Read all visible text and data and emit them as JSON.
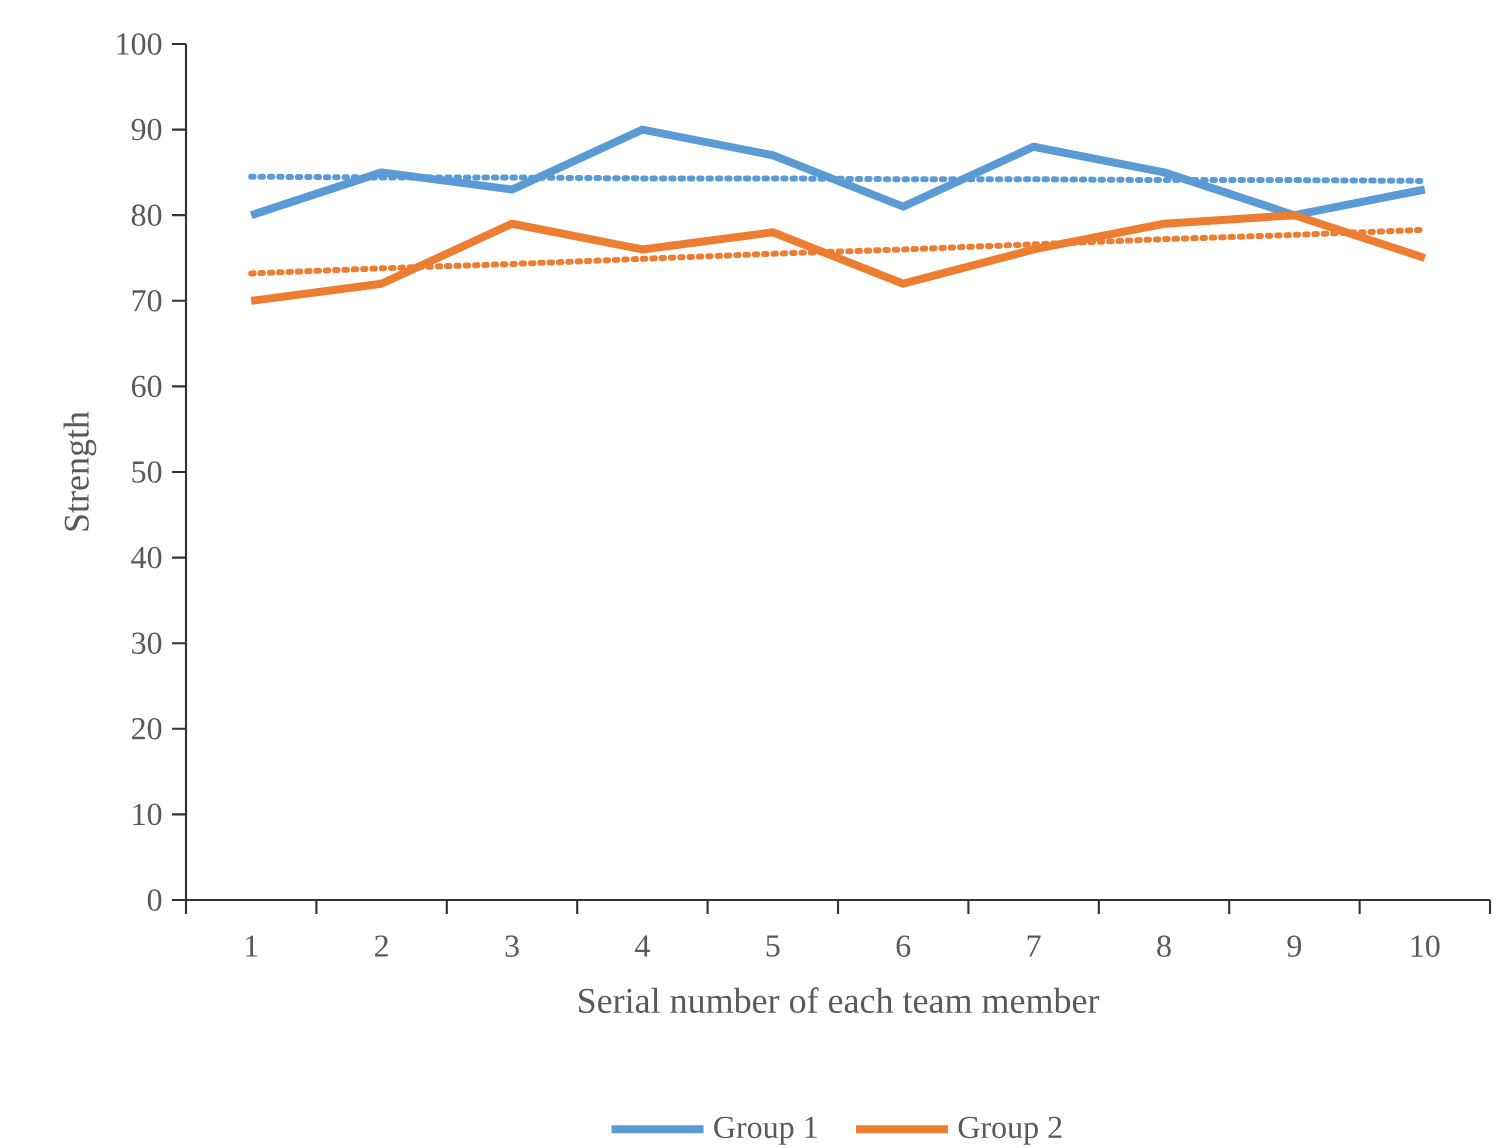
{
  "chart_data": {
    "type": "line",
    "xlabel": "Serial number of each team member",
    "ylabel": "Strength",
    "categories": [
      "1",
      "2",
      "3",
      "4",
      "5",
      "6",
      "7",
      "8",
      "9",
      "10"
    ],
    "series": [
      {
        "name": "Group 1",
        "color": "#5b9bd5",
        "values": [
          80,
          85,
          83,
          90,
          87,
          81,
          88,
          85,
          80,
          83
        ]
      },
      {
        "name": "Group 2",
        "color": "#ed7d31",
        "values": [
          70,
          72,
          79,
          76,
          78,
          72,
          76,
          79,
          80,
          75
        ]
      },
      {
        "color": "#5b9bd5",
        "line_style": "dotted",
        "values": [
          84.5,
          84.4,
          84.4,
          84.3,
          84.3,
          84.2,
          84.2,
          84.1,
          84.1,
          84.0
        ]
      },
      {
        "color": "#ed7d31",
        "line_style": "dotted",
        "values": [
          73.2,
          73.8,
          74.3,
          74.9,
          75.5,
          76.0,
          76.6,
          77.2,
          77.7,
          78.3
        ]
      }
    ],
    "ylim": [
      0,
      100
    ],
    "yticks": [
      0,
      10,
      20,
      30,
      40,
      50,
      60,
      70,
      80,
      90,
      100
    ],
    "grid": false,
    "legend": "bottom",
    "marker": "none",
    "line_style": "solid"
  }
}
